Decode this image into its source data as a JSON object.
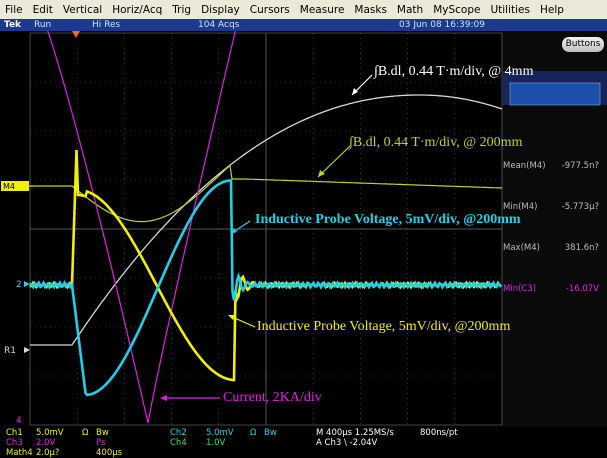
{
  "menu": {
    "items": [
      "File",
      "Edit",
      "Vertical",
      "Horiz/Acq",
      "Trig",
      "Display",
      "Cursors",
      "Measure",
      "Masks",
      "Math",
      "MyScope",
      "Utilities",
      "Help"
    ]
  },
  "status": {
    "brand": "Tek",
    "run": "Run",
    "mode": "Hi Res",
    "acqs": "104 Acqs",
    "datetime": "03 Jun 08 16:39:09"
  },
  "buttons_label": "Buttons",
  "markers": {
    "m4": "M4",
    "ch2": "2",
    "r1": "R1",
    "ch4": "4"
  },
  "measurements": [
    {
      "label": "Mean(M4)",
      "value": "-977.5n?"
    },
    {
      "label": "Min(M4)",
      "value": "-5.773µ?"
    },
    {
      "label": "Max(M4)",
      "value": "381.6n?"
    },
    {
      "label": "Min(C3)",
      "value": "-16.07V"
    }
  ],
  "annotations": {
    "bdl_4mm": "∫B.dl, 0.44 T·m/div, @ 4mm",
    "bdl_200mm": "∫B.dl, 0.44 T·m/div, @ 200mm",
    "probe_cyan": "Inductive Probe Voltage, 5mV/div, @200mm",
    "probe_yellow": "Inductive Probe Voltage, 5mV/div, @200mm",
    "current": "Current, 2KA/div"
  },
  "readout": {
    "ch1": "Ch1",
    "ch1_scale": "5.0mV",
    "ch1_omega": "Ω",
    "ch1_bw": "Bw",
    "ch3": "Ch3",
    "ch3_scale": "2.0V",
    "ch3_ps": "Ps",
    "math4": "Math4",
    "math4_scale": "2.0µ?",
    "math4_time": "400µs",
    "ch2": "Ch2",
    "ch2_scale": "5.0mV",
    "ch2_omega": "Ω",
    "ch2_bw": "Bw",
    "ch4": "Ch4",
    "ch4_scale": "1.0V",
    "timebase": "M 400µs 1.25MS/s",
    "points": "800ns/pt",
    "trigger": "A Ch3 \\ -2.04V"
  },
  "colors": {
    "yellow": "#f0f000",
    "cyan": "#20d0e8",
    "magenta": "#e020e0",
    "white": "#d8d8d8",
    "lime": "#b8d820",
    "grid": "#5a5a5a"
  }
}
